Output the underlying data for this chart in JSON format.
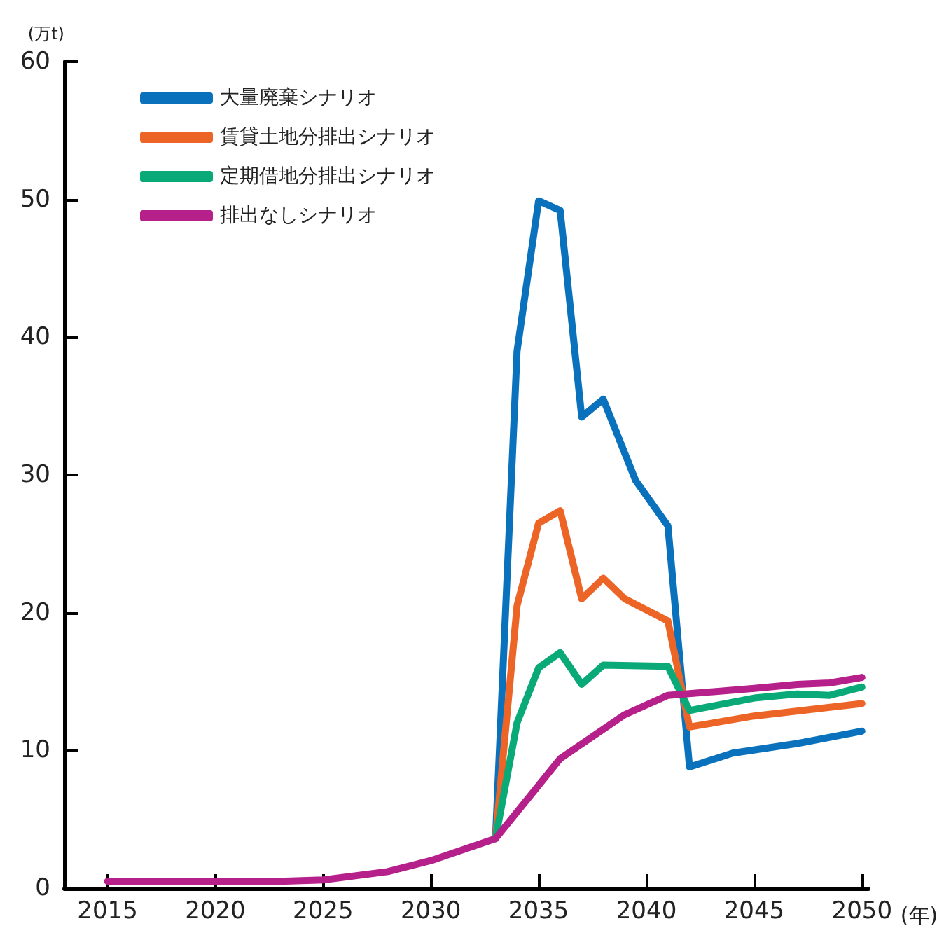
{
  "chart_data": {
    "type": "line",
    "ylabel": "(万t)",
    "xlabel": "(年)",
    "xlim": [
      2013,
      2050.3
    ],
    "xticks": [
      2015,
      2020,
      2025,
      2030,
      2035,
      2040,
      2045,
      2050
    ],
    "ylim": [
      0,
      60
    ],
    "yticks": [
      0,
      10,
      20,
      30,
      40,
      50,
      60
    ],
    "grid": false,
    "legend": "top left",
    "marker": "none",
    "line_style": "solid",
    "series": [
      {
        "name": "大量廃棄シナリオ",
        "color": "#0a71bd",
        "x": [
          2033,
          2034,
          2035,
          2036,
          2037,
          2038,
          2039.5,
          2041,
          2042,
          2044,
          2047,
          2050
        ],
        "values": [
          3.6,
          39,
          49.9,
          49.2,
          34.2,
          35.5,
          29.6,
          26.3,
          8.8,
          9.8,
          10.5,
          11.4
        ]
      },
      {
        "name": "賃貸土地分排出シナリオ",
        "color": "#ec6527",
        "x": [
          2033,
          2034,
          2035,
          2036,
          2037,
          2038,
          2039,
          2041,
          2042,
          2045,
          2050
        ],
        "values": [
          3.6,
          20.5,
          26.5,
          27.4,
          21,
          22.5,
          21,
          19.4,
          11.7,
          12.5,
          13.4
        ]
      },
      {
        "name": "定期借地分排出シナリオ",
        "color": "#0aaa78",
        "x": [
          2033,
          2034,
          2035,
          2036,
          2037,
          2038,
          2041,
          2042,
          2045,
          2047,
          2048.5,
          2050
        ],
        "values": [
          3.6,
          12,
          16,
          17.1,
          14.8,
          16.2,
          16.1,
          12.9,
          13.8,
          14.1,
          14.0,
          14.6
        ]
      },
      {
        "name": "排出なしシナリオ",
        "color": "#b5208a",
        "x": [
          2015,
          2020,
          2023,
          2025,
          2028,
          2030,
          2033,
          2036,
          2039,
          2041,
          2045,
          2047,
          2048.5,
          2050
        ],
        "values": [
          0.5,
          0.5,
          0.5,
          0.6,
          1.2,
          2.0,
          3.6,
          9.4,
          12.6,
          14,
          14.5,
          14.8,
          14.9,
          15.3
        ]
      }
    ]
  }
}
